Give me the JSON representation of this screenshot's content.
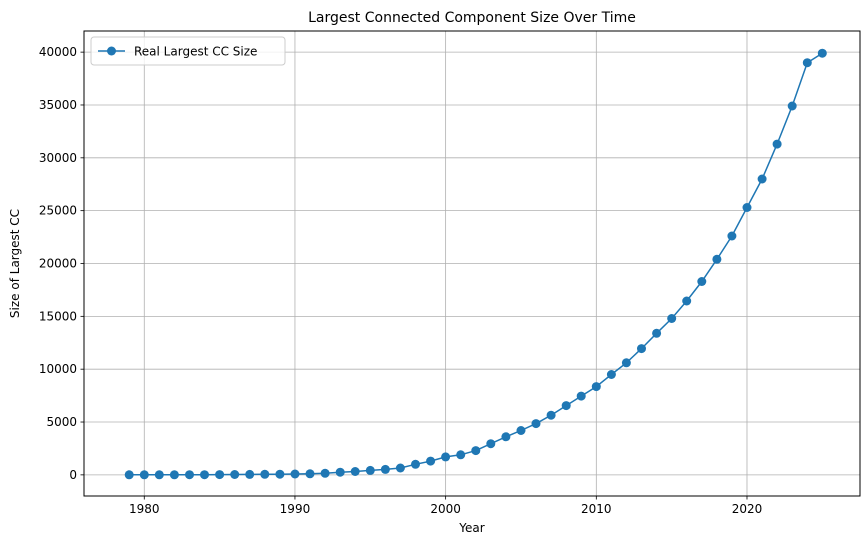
{
  "chart_data": {
    "type": "line",
    "title": "Largest Connected Component Size Over Time",
    "xlabel": "Year",
    "ylabel": "Size of Largest CC",
    "xlim": [
      1976,
      2027.5
    ],
    "ylim": [
      -2000,
      42000
    ],
    "xticks": [
      1980,
      1990,
      2000,
      2010,
      2020
    ],
    "yticks": [
      0,
      5000,
      10000,
      15000,
      20000,
      25000,
      30000,
      35000,
      40000
    ],
    "grid": true,
    "legend": {
      "placement": "top-left",
      "entries": [
        "Real Largest CC Size"
      ]
    },
    "colors": {
      "series": "#1f77b4",
      "grid": "#b0b0b0"
    },
    "series": [
      {
        "name": "Real Largest CC Size",
        "marker": "circle",
        "x": [
          1979,
          1980,
          1981,
          1982,
          1983,
          1984,
          1985,
          1986,
          1987,
          1988,
          1989,
          1990,
          1991,
          1992,
          1993,
          1994,
          1995,
          1996,
          1997,
          1998,
          1999,
          2000,
          2001,
          2002,
          2003,
          2004,
          2005,
          2006,
          2007,
          2008,
          2009,
          2010,
          2011,
          2012,
          2013,
          2014,
          2015,
          2016,
          2017,
          2018,
          2019,
          2020,
          2021,
          2022,
          2023,
          2024,
          2025
        ],
        "y": [
          5,
          5,
          10,
          10,
          15,
          20,
          25,
          30,
          40,
          50,
          60,
          80,
          100,
          150,
          250,
          320,
          420,
          520,
          650,
          1000,
          1300,
          1700,
          1900,
          2300,
          2950,
          3600,
          4200,
          4850,
          5650,
          6550,
          7450,
          8350,
          9500,
          10600,
          11950,
          13400,
          14800,
          16450,
          18300,
          20400,
          22600,
          25300,
          28000,
          31300,
          34900,
          39000,
          39900
        ]
      }
    ]
  }
}
